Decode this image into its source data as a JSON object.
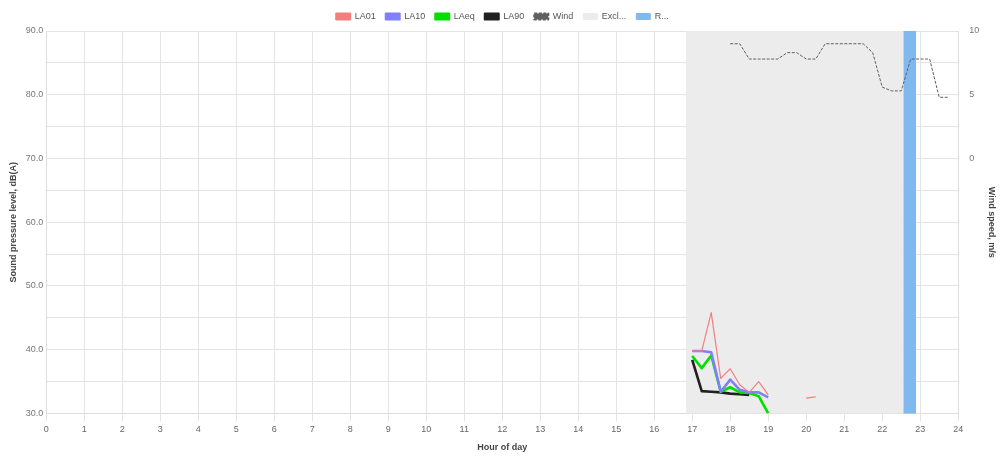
{
  "chart_data": {
    "type": "line",
    "xlabel": "Hour of day",
    "ylabel": "Sound pressure level, dB(A)",
    "y2label": "Wind speed, m/s",
    "x": [
      17,
      17.25,
      17.5,
      17.75,
      18,
      18.25,
      18.5,
      18.75,
      19,
      19.25,
      19.5,
      19.75,
      20,
      20.25,
      20.5,
      20.75,
      21,
      21.25,
      21.5,
      21.75,
      22,
      22.25,
      22.5,
      22.75,
      23,
      23.25,
      23.5,
      23.75
    ],
    "series": [
      {
        "name": "LA01",
        "color": "#f08080",
        "values": [
          39.8,
          39.8,
          45.8,
          35.5,
          37.0,
          34.5,
          33.3,
          35.0,
          32.9,
          null,
          null,
          null,
          32.4,
          32.6,
          null,
          null,
          null,
          null,
          null,
          null,
          null,
          null,
          null,
          null,
          null,
          null,
          null,
          null
        ]
      },
      {
        "name": "LA10",
        "color": "#8080ff",
        "values": [
          39.8,
          39.8,
          39.6,
          33.4,
          35.3,
          33.7,
          33.3,
          33.3,
          32.5,
          null,
          null,
          null,
          null,
          null,
          null,
          null,
          null,
          null,
          null,
          null,
          null,
          null,
          null,
          null,
          null,
          null,
          null,
          null
        ]
      },
      {
        "name": "LAeq",
        "color": "#00e000",
        "values": [
          39.0,
          37.1,
          39.1,
          33.4,
          34.1,
          33.3,
          33.2,
          32.7,
          30.0,
          null,
          null,
          null,
          null,
          null,
          null,
          null,
          null,
          null,
          null,
          null,
          null,
          null,
          null,
          null,
          null,
          null,
          null,
          null
        ]
      },
      {
        "name": "LA90",
        "color": "#202020",
        "values": [
          38.4,
          33.5,
          33.4,
          33.3,
          33.1,
          33.0,
          32.9,
          null,
          null,
          null,
          null,
          null,
          null,
          null,
          null,
          null,
          null,
          null,
          null,
          null,
          null,
          null,
          null,
          null,
          null,
          null,
          null,
          null
        ]
      },
      {
        "name": "Wind",
        "color": "#606060",
        "axis": "y2",
        "line_style": "dashed",
        "values": [
          null,
          null,
          null,
          null,
          9.0,
          9.0,
          7.8,
          7.8,
          7.8,
          7.8,
          8.3,
          8.3,
          7.8,
          7.8,
          9.0,
          9.0,
          9.0,
          9.0,
          9.0,
          8.3,
          5.6,
          5.3,
          5.3,
          7.8,
          7.8,
          7.8,
          4.8,
          4.8
        ]
      }
    ],
    "bands": [
      {
        "axis": "x",
        "from": 16.84,
        "to": 22.56,
        "label": "Excl...",
        "color": "#ececec"
      },
      {
        "axis": "x",
        "from": 22.56,
        "to": 22.89,
        "label": "R...",
        "color": "#80b8f0"
      }
    ],
    "xlim": [
      0,
      24
    ],
    "xticks": [
      0,
      1,
      2,
      3,
      4,
      5,
      6,
      7,
      8,
      9,
      10,
      11,
      12,
      13,
      14,
      15,
      16,
      17,
      18,
      19,
      20,
      21,
      22,
      23,
      24
    ],
    "ylim": [
      30,
      90
    ],
    "yticks": [
      {
        "value": 30,
        "label": "30.0"
      },
      {
        "value": 35,
        "label": null
      },
      {
        "value": 40,
        "label": "40.0"
      },
      {
        "value": 45,
        "label": null
      },
      {
        "value": 50,
        "label": "50.0"
      },
      {
        "value": 55,
        "label": null
      },
      {
        "value": 60,
        "label": "60.0"
      },
      {
        "value": 65,
        "label": null
      },
      {
        "value": 70,
        "label": "70.0"
      },
      {
        "value": 75,
        "label": null
      },
      {
        "value": 80,
        "label": "80.0"
      },
      {
        "value": 85,
        "label": null
      },
      {
        "value": 90,
        "label": "90.0"
      }
    ],
    "y2lim": [
      -20,
      10
    ],
    "y2ticks": [
      0,
      5,
      10
    ],
    "grid": true,
    "legend": "top",
    "marker": "none"
  }
}
